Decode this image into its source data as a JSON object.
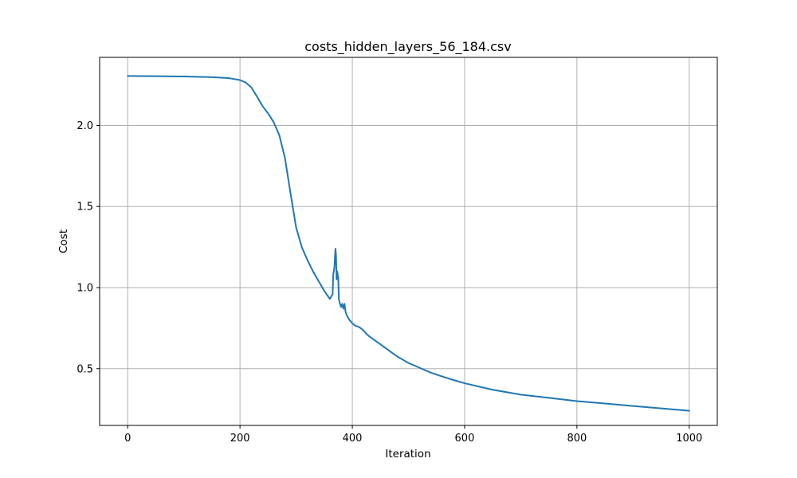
{
  "chart_data": {
    "type": "line",
    "title": "costs_hidden_layers_56_184.csv",
    "xlabel": "Iteration",
    "ylabel": "Cost",
    "xlim": [
      -50,
      1050
    ],
    "ylim": [
      0.15,
      2.42
    ],
    "xticks": [
      0,
      200,
      400,
      600,
      800,
      1000
    ],
    "yticks": [
      0.5,
      1.0,
      1.5,
      2.0
    ],
    "xtick_labels": [
      "0",
      "200",
      "400",
      "600",
      "800",
      "1000"
    ],
    "ytick_labels": [
      "0.5",
      "1.0",
      "1.5",
      "2.0"
    ],
    "grid": true,
    "series": [
      {
        "color": "#1f77b4",
        "x": [
          0,
          50,
          100,
          150,
          180,
          200,
          210,
          220,
          230,
          240,
          250,
          260,
          270,
          280,
          290,
          300,
          310,
          320,
          330,
          340,
          350,
          360,
          365,
          366,
          368,
          370,
          371,
          372,
          373,
          375,
          376,
          378,
          380,
          382,
          384,
          386,
          388,
          390,
          395,
          400,
          405,
          410,
          415,
          420,
          425,
          430,
          440,
          450,
          460,
          470,
          480,
          490,
          500,
          520,
          540,
          560,
          580,
          600,
          650,
          700,
          750,
          800,
          850,
          900,
          950,
          1000
        ],
        "y": [
          2.305,
          2.304,
          2.302,
          2.298,
          2.292,
          2.28,
          2.265,
          2.235,
          2.18,
          2.12,
          2.075,
          2.02,
          1.94,
          1.8,
          1.58,
          1.37,
          1.25,
          1.17,
          1.1,
          1.04,
          0.98,
          0.93,
          0.96,
          1.08,
          1.12,
          1.24,
          1.2,
          1.05,
          1.1,
          1.06,
          0.93,
          0.9,
          0.88,
          0.9,
          0.87,
          0.9,
          0.85,
          0.83,
          0.8,
          0.78,
          0.765,
          0.76,
          0.75,
          0.735,
          0.715,
          0.7,
          0.675,
          0.65,
          0.625,
          0.6,
          0.575,
          0.555,
          0.535,
          0.505,
          0.475,
          0.452,
          0.43,
          0.41,
          0.37,
          0.34,
          0.32,
          0.3,
          0.285,
          0.27,
          0.255,
          0.24
        ]
      }
    ]
  }
}
